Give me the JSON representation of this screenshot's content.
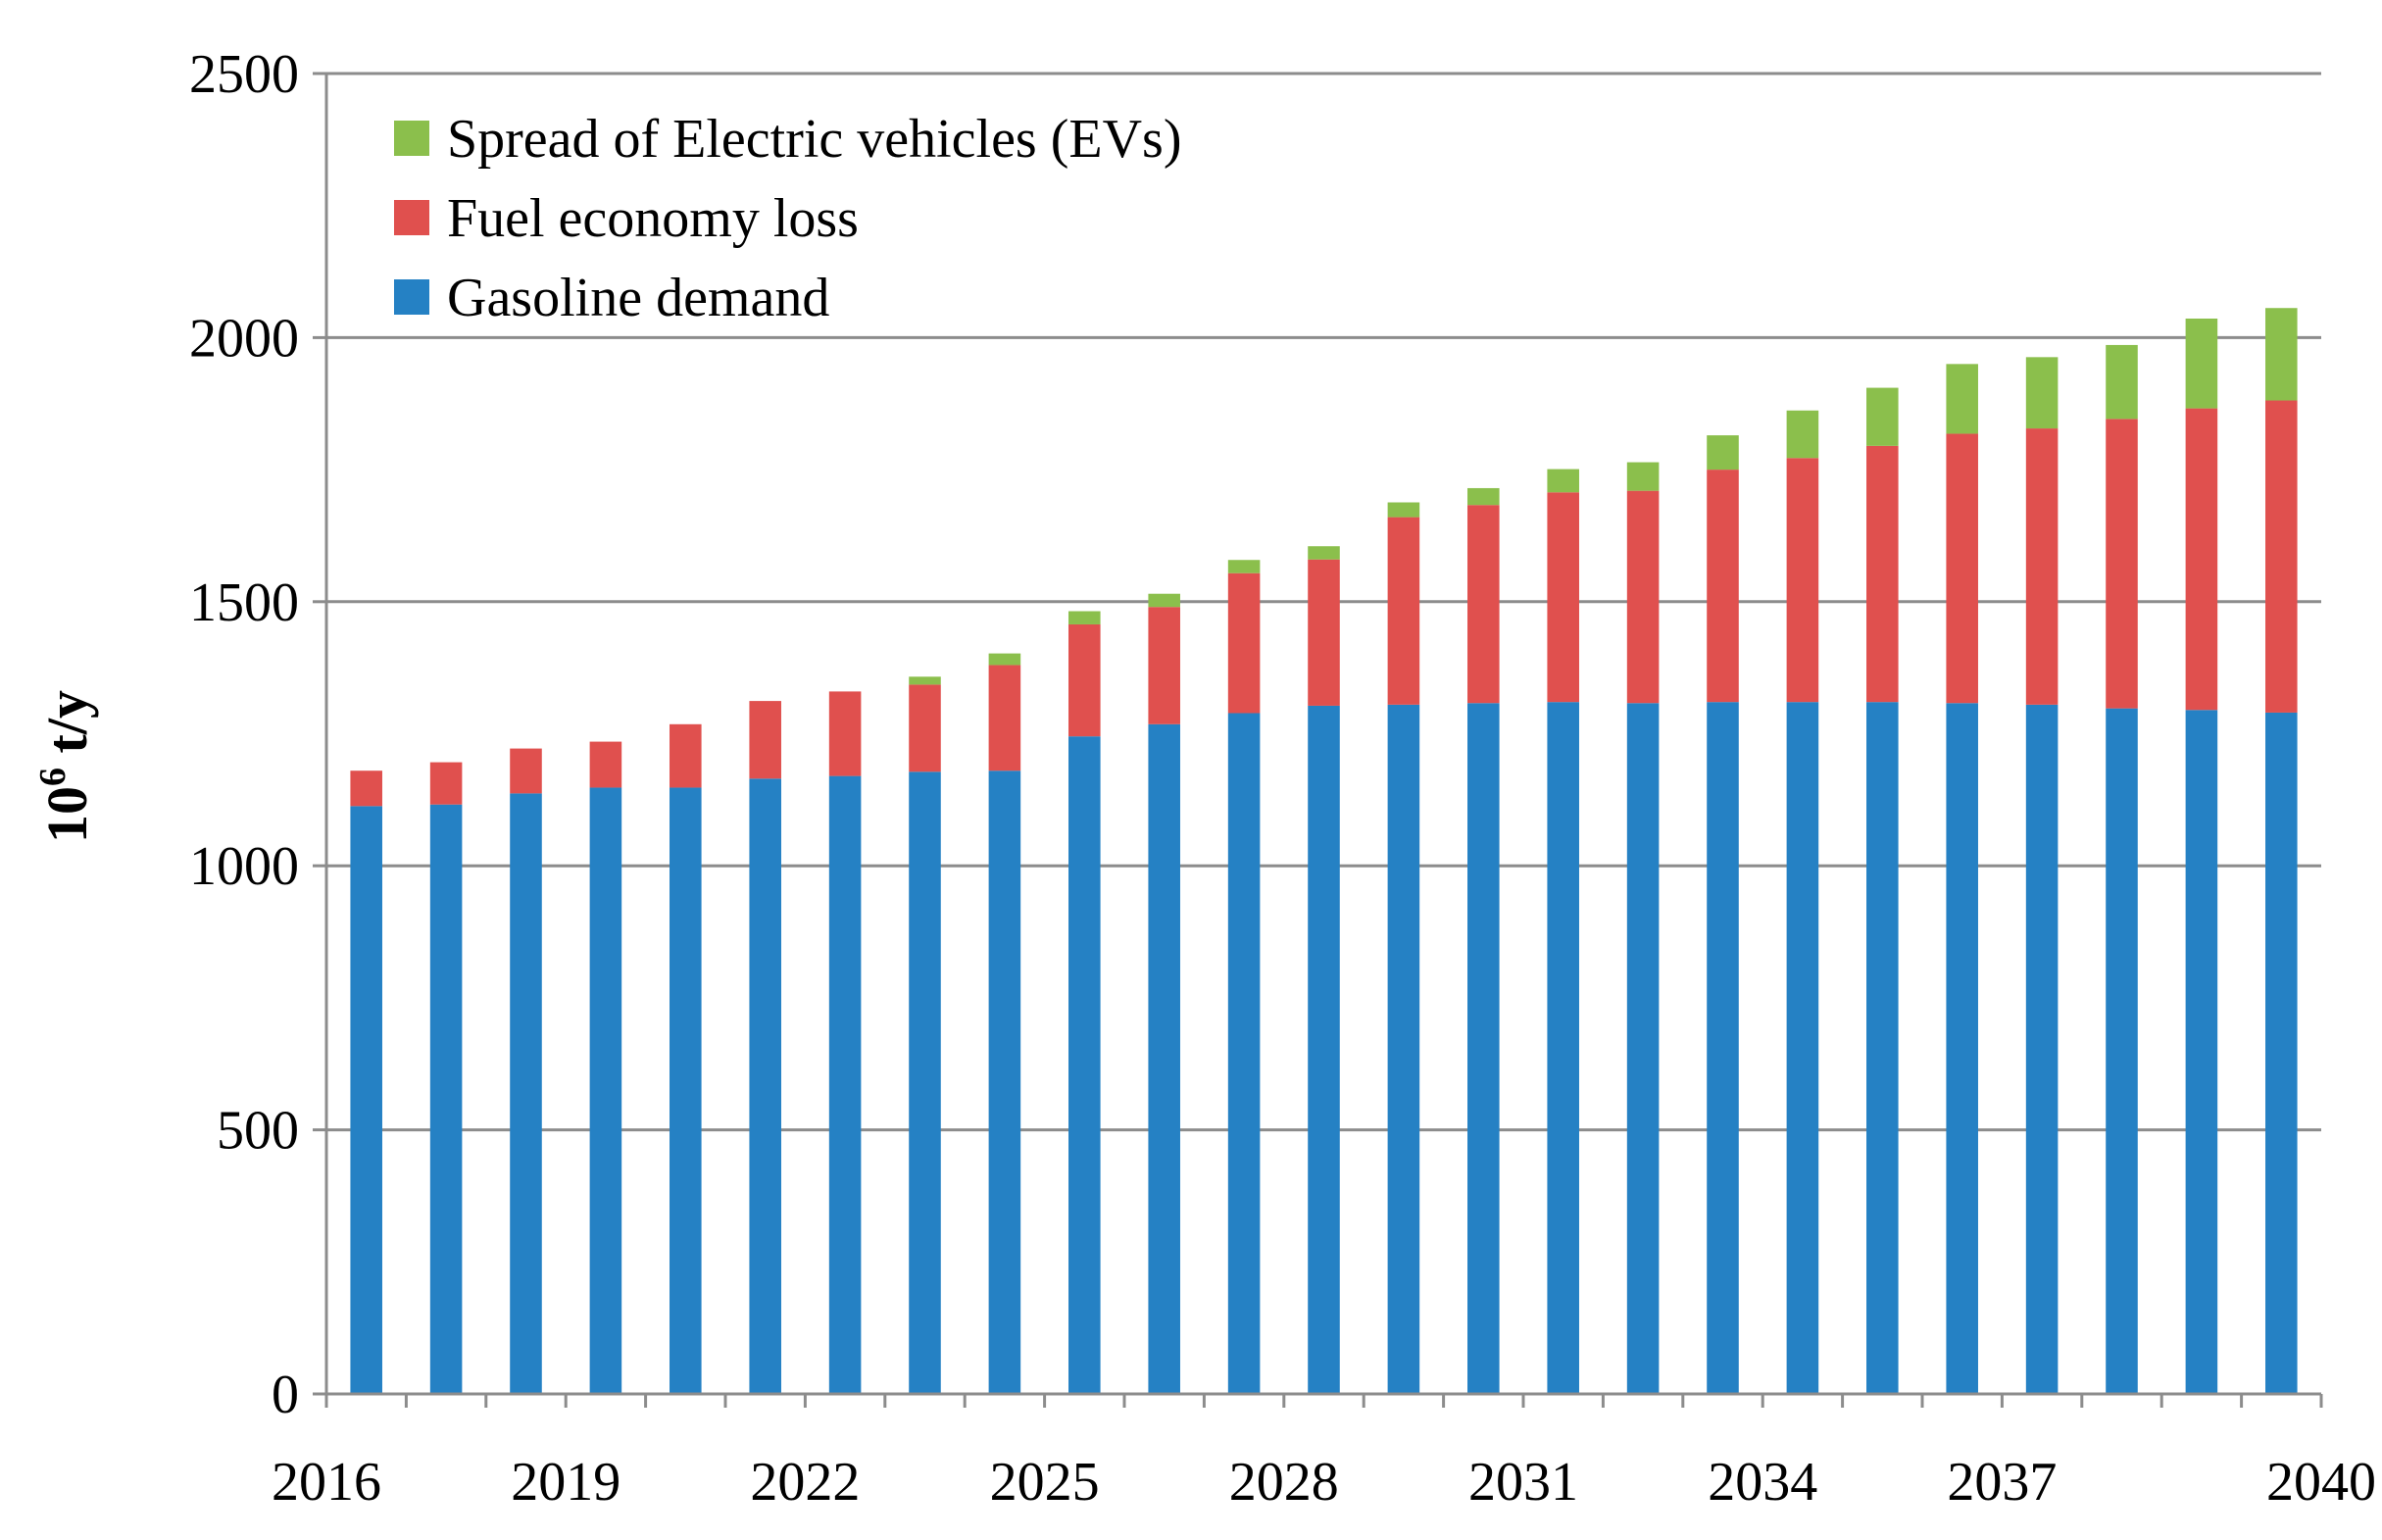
{
  "chart_data": {
    "type": "bar",
    "stacked": true,
    "title": "",
    "xlabel": "",
    "ylabel": "10",
    "ylabel_superscript": "6",
    "ylabel_suffix": " t/y",
    "ylim": [
      0,
      2500
    ],
    "yticks": [
      0,
      500,
      1000,
      1500,
      2000,
      2500
    ],
    "grid": true,
    "legend_position": "top-left",
    "categories": [
      2016,
      2017,
      2018,
      2019,
      2020,
      2021,
      2022,
      2023,
      2024,
      2025,
      2026,
      2027,
      2028,
      2029,
      2030,
      2031,
      2032,
      2033,
      2034,
      2035,
      2036,
      2037,
      2038,
      2039,
      2040
    ],
    "xtick_labels": [
      "2016",
      "2019",
      "2022",
      "2025",
      "2028",
      "2031",
      "2034",
      "2037",
      "2040"
    ],
    "series": [
      {
        "name": "Gasoline demand",
        "color": "#2581c4",
        "values": [
          1113,
          1116,
          1137,
          1148,
          1148,
          1165,
          1170,
          1178,
          1180,
          1245,
          1268,
          1289,
          1303,
          1305,
          1308,
          1310,
          1308,
          1310,
          1310,
          1310,
          1308,
          1305,
          1298,
          1295,
          1290
        ]
      },
      {
        "name": "Fuel economy loss",
        "color": "#e0504e",
        "values": [
          67,
          80,
          85,
          87,
          120,
          147,
          160,
          165,
          200,
          212,
          222,
          265,
          277,
          355,
          375,
          397,
          402,
          440,
          462,
          485,
          510,
          523,
          548,
          571,
          591
        ]
      },
      {
        "name": "Spread of Electric vehicles (EVs)",
        "color": "#8bbf4c",
        "values": [
          0,
          0,
          0,
          0,
          0,
          0,
          0,
          15,
          22,
          25,
          25,
          25,
          25,
          28,
          32,
          44,
          54,
          65,
          90,
          110,
          132,
          135,
          140,
          170,
          175
        ]
      }
    ],
    "legend_order": [
      "Spread of Electric vehicles (EVs)",
      "Fuel economy loss",
      "Gasoline demand"
    ]
  }
}
